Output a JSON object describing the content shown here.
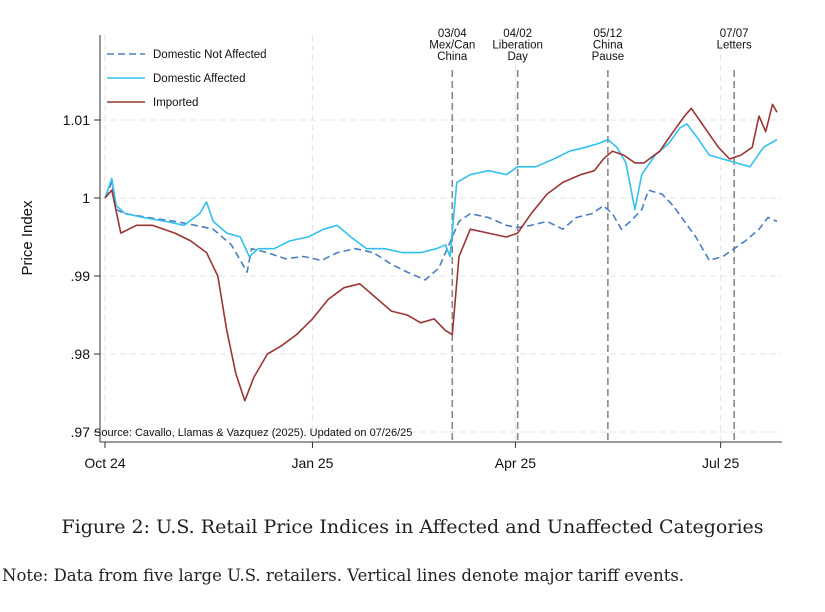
{
  "chart_data": {
    "type": "line",
    "title": "",
    "xlabel": "",
    "ylabel": "Price Index",
    "ylim": [
      0.97,
      1.02
    ],
    "y_ticks": [
      {
        "value": 0.97,
        "label": ".97"
      },
      {
        "value": 0.98,
        "label": ".98"
      },
      {
        "value": 0.99,
        "label": ".99"
      },
      {
        "value": 1.0,
        "label": "1"
      },
      {
        "value": 1.01,
        "label": "1.01"
      }
    ],
    "x_ticks": [
      {
        "date": "2024-10-01",
        "label": "Oct 24"
      },
      {
        "date": "2025-01-01",
        "label": "Jan 25"
      },
      {
        "date": "2025-04-01",
        "label": "Apr 25"
      },
      {
        "date": "2025-07-01",
        "label": "Jul 25"
      }
    ],
    "xlim": [
      "2024-10-01",
      "2025-07-26"
    ],
    "grid": true,
    "legend_position": "top-left",
    "events": [
      {
        "date": "2025-03-04",
        "label_lines": [
          "03/04",
          "Mex/Can",
          "China"
        ]
      },
      {
        "date": "2025-04-02",
        "label_lines": [
          "04/02",
          "Liberation",
          "Day"
        ]
      },
      {
        "date": "2025-05-12",
        "label_lines": [
          "05/12",
          "China",
          "Pause"
        ]
      },
      {
        "date": "2025-07-07",
        "label_lines": [
          "07/07",
          "Letters"
        ]
      }
    ],
    "annotation": "Source: Cavallo, Llamas & Vazquez (2025). Updated on 07/26/25",
    "series": [
      {
        "name": "Domestic Not Affected",
        "color": "#4a7fbf",
        "dash": true,
        "points": [
          [
            "2024-10-01",
            1.0
          ],
          [
            "2024-10-04",
            1.002
          ],
          [
            "2024-10-06",
            0.9985
          ],
          [
            "2024-10-10",
            0.998
          ],
          [
            "2024-10-20",
            0.9975
          ],
          [
            "2024-11-01",
            0.997
          ],
          [
            "2024-11-10",
            0.9965
          ],
          [
            "2024-11-18",
            0.996
          ],
          [
            "2024-11-26",
            0.994
          ],
          [
            "2024-12-03",
            0.9905
          ],
          [
            "2024-12-05",
            0.9935
          ],
          [
            "2024-12-12",
            0.993
          ],
          [
            "2024-12-20",
            0.9922
          ],
          [
            "2024-12-28",
            0.9925
          ],
          [
            "2025-01-05",
            0.992
          ],
          [
            "2025-01-12",
            0.993
          ],
          [
            "2025-01-20",
            0.9935
          ],
          [
            "2025-01-28",
            0.993
          ],
          [
            "2025-02-05",
            0.9915
          ],
          [
            "2025-02-12",
            0.9905
          ],
          [
            "2025-02-20",
            0.9895
          ],
          [
            "2025-02-26",
            0.991
          ],
          [
            "2025-03-01",
            0.993
          ],
          [
            "2025-03-04",
            0.995
          ],
          [
            "2025-03-07",
            0.997
          ],
          [
            "2025-03-12",
            0.998
          ],
          [
            "2025-03-20",
            0.9975
          ],
          [
            "2025-03-28",
            0.9965
          ],
          [
            "2025-04-02",
            0.9962
          ],
          [
            "2025-04-08",
            0.9965
          ],
          [
            "2025-04-15",
            0.997
          ],
          [
            "2025-04-22",
            0.996
          ],
          [
            "2025-04-28",
            0.9975
          ],
          [
            "2025-05-05",
            0.998
          ],
          [
            "2025-05-10",
            0.999
          ],
          [
            "2025-05-14",
            0.998
          ],
          [
            "2025-05-18",
            0.996
          ],
          [
            "2025-05-22",
            0.997
          ],
          [
            "2025-05-27",
            0.9985
          ],
          [
            "2025-05-30",
            1.001
          ],
          [
            "2025-06-05",
            1.0005
          ],
          [
            "2025-06-10",
            0.999
          ],
          [
            "2025-06-15",
            0.997
          ],
          [
            "2025-06-20",
            0.995
          ],
          [
            "2025-06-26",
            0.992
          ],
          [
            "2025-07-02",
            0.9925
          ],
          [
            "2025-07-07",
            0.9935
          ],
          [
            "2025-07-12",
            0.9945
          ],
          [
            "2025-07-18",
            0.996
          ],
          [
            "2025-07-22",
            0.9975
          ],
          [
            "2025-07-26",
            0.997
          ]
        ]
      },
      {
        "name": "Domestic Affected",
        "color": "#33c0ee",
        "dash": false,
        "points": [
          [
            "2024-10-01",
            1.0
          ],
          [
            "2024-10-04",
            1.0025
          ],
          [
            "2024-10-06",
            0.999
          ],
          [
            "2024-10-10",
            0.998
          ],
          [
            "2024-10-18",
            0.9975
          ],
          [
            "2024-10-28",
            0.997
          ],
          [
            "2024-11-05",
            0.9965
          ],
          [
            "2024-11-12",
            0.998
          ],
          [
            "2024-11-15",
            0.9995
          ],
          [
            "2024-11-18",
            0.997
          ],
          [
            "2024-11-24",
            0.9955
          ],
          [
            "2024-11-30",
            0.995
          ],
          [
            "2024-12-04",
            0.9925
          ],
          [
            "2024-12-08",
            0.9935
          ],
          [
            "2024-12-15",
            0.9935
          ],
          [
            "2024-12-22",
            0.9945
          ],
          [
            "2024-12-30",
            0.995
          ],
          [
            "2025-01-06",
            0.996
          ],
          [
            "2025-01-12",
            0.9965
          ],
          [
            "2025-01-18",
            0.995
          ],
          [
            "2025-01-25",
            0.9935
          ],
          [
            "2025-02-02",
            0.9935
          ],
          [
            "2025-02-10",
            0.993
          ],
          [
            "2025-02-18",
            0.993
          ],
          [
            "2025-02-25",
            0.9935
          ],
          [
            "2025-03-01",
            0.994
          ],
          [
            "2025-03-03",
            0.9925
          ],
          [
            "2025-03-06",
            1.002
          ],
          [
            "2025-03-12",
            1.003
          ],
          [
            "2025-03-20",
            1.0035
          ],
          [
            "2025-03-28",
            1.003
          ],
          [
            "2025-04-02",
            1.004
          ],
          [
            "2025-04-10",
            1.004
          ],
          [
            "2025-04-18",
            1.005
          ],
          [
            "2025-04-25",
            1.006
          ],
          [
            "2025-05-02",
            1.0065
          ],
          [
            "2025-05-08",
            1.007
          ],
          [
            "2025-05-12",
            1.0075
          ],
          [
            "2025-05-16",
            1.0065
          ],
          [
            "2025-05-20",
            1.0045
          ],
          [
            "2025-05-24",
            0.9985
          ],
          [
            "2025-05-27",
            1.003
          ],
          [
            "2025-06-02",
            1.0055
          ],
          [
            "2025-06-08",
            1.007
          ],
          [
            "2025-06-13",
            1.009
          ],
          [
            "2025-06-16",
            1.0095
          ],
          [
            "2025-06-20",
            1.008
          ],
          [
            "2025-06-26",
            1.0055
          ],
          [
            "2025-07-02",
            1.005
          ],
          [
            "2025-07-08",
            1.0045
          ],
          [
            "2025-07-14",
            1.004
          ],
          [
            "2025-07-20",
            1.0065
          ],
          [
            "2025-07-26",
            1.0075
          ]
        ]
      },
      {
        "name": "Imported",
        "color": "#9b3535",
        "dash": false,
        "points": [
          [
            "2024-10-01",
            1.0
          ],
          [
            "2024-10-04",
            1.001
          ],
          [
            "2024-10-08",
            0.9955
          ],
          [
            "2024-10-15",
            0.9965
          ],
          [
            "2024-10-22",
            0.9965
          ],
          [
            "2024-11-01",
            0.9955
          ],
          [
            "2024-11-08",
            0.9945
          ],
          [
            "2024-11-15",
            0.993
          ],
          [
            "2024-11-20",
            0.99
          ],
          [
            "2024-11-24",
            0.983
          ],
          [
            "2024-11-28",
            0.9775
          ],
          [
            "2024-12-02",
            0.974
          ],
          [
            "2024-12-06",
            0.977
          ],
          [
            "2024-12-12",
            0.98
          ],
          [
            "2024-12-18",
            0.981
          ],
          [
            "2024-12-25",
            0.9825
          ],
          [
            "2025-01-01",
            0.9845
          ],
          [
            "2025-01-08",
            0.987
          ],
          [
            "2025-01-15",
            0.9885
          ],
          [
            "2025-01-22",
            0.989
          ],
          [
            "2025-01-28",
            0.9875
          ],
          [
            "2025-02-05",
            0.9855
          ],
          [
            "2025-02-12",
            0.985
          ],
          [
            "2025-02-18",
            0.984
          ],
          [
            "2025-02-24",
            0.9845
          ],
          [
            "2025-03-01",
            0.983
          ],
          [
            "2025-03-04",
            0.9825
          ],
          [
            "2025-03-07",
            0.9925
          ],
          [
            "2025-03-12",
            0.996
          ],
          [
            "2025-03-20",
            0.9955
          ],
          [
            "2025-03-28",
            0.995
          ],
          [
            "2025-04-02",
            0.9955
          ],
          [
            "2025-04-08",
            0.998
          ],
          [
            "2025-04-15",
            1.0005
          ],
          [
            "2025-04-22",
            1.002
          ],
          [
            "2025-04-30",
            1.003
          ],
          [
            "2025-05-06",
            1.0035
          ],
          [
            "2025-05-10",
            1.005
          ],
          [
            "2025-05-14",
            1.006
          ],
          [
            "2025-05-19",
            1.0055
          ],
          [
            "2025-05-24",
            1.0045
          ],
          [
            "2025-05-28",
            1.0045
          ],
          [
            "2025-06-04",
            1.006
          ],
          [
            "2025-06-10",
            1.0085
          ],
          [
            "2025-06-15",
            1.0105
          ],
          [
            "2025-06-18",
            1.0115
          ],
          [
            "2025-06-24",
            1.009
          ],
          [
            "2025-06-30",
            1.0065
          ],
          [
            "2025-07-05",
            1.005
          ],
          [
            "2025-07-10",
            1.0055
          ],
          [
            "2025-07-15",
            1.0065
          ],
          [
            "2025-07-18",
            1.0105
          ],
          [
            "2025-07-21",
            1.0085
          ],
          [
            "2025-07-24",
            1.012
          ],
          [
            "2025-07-26",
            1.011
          ]
        ]
      }
    ]
  },
  "figure": {
    "caption": "Figure 2: U.S. Retail Price Indices in Affected and Unaffected Categories",
    "note": "Note: Data from five large U.S. retailers. Vertical lines denote major tariff events."
  }
}
